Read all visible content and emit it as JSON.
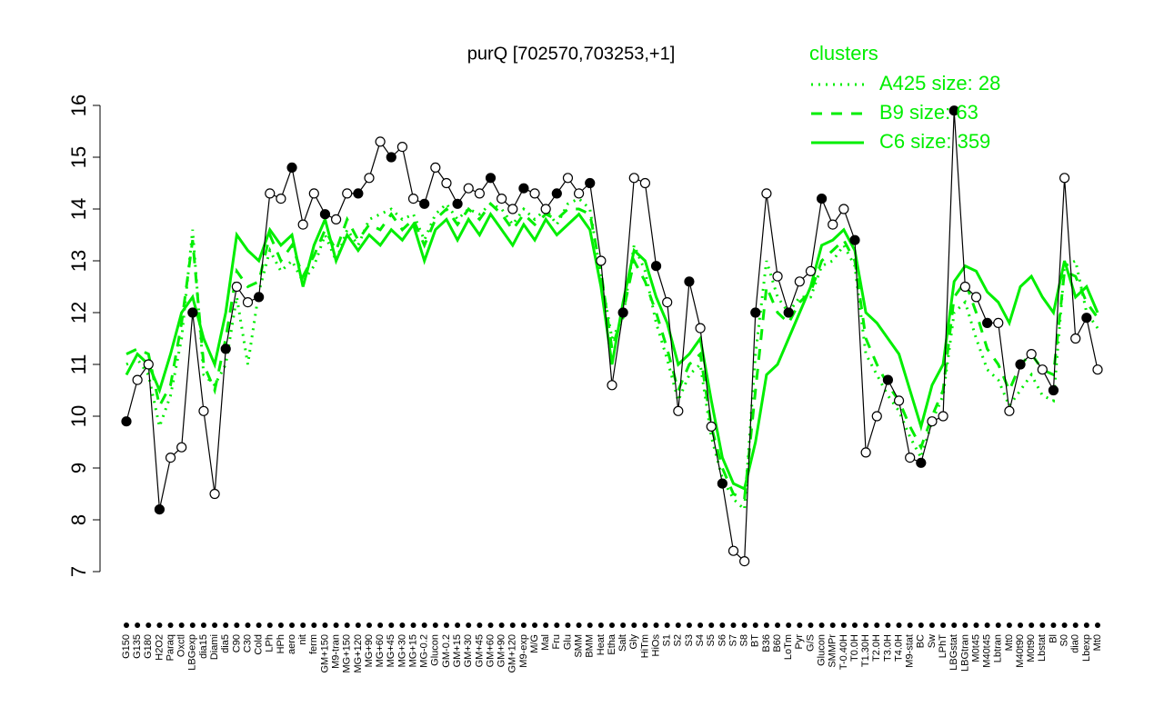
{
  "chart_data": {
    "type": "line",
    "title": "purQ [702570,703253,+1]",
    "legend_title": "clusters",
    "categories": [
      "G150",
      "G135",
      "G180",
      "H2O2",
      "Paraq",
      "Oxctl",
      "LBGexp",
      "dia15",
      "Diami",
      "dia5",
      "C90",
      "C30",
      "Cold",
      "LPh",
      "HPh",
      "aero",
      "nit",
      "ferm",
      "GM+150",
      "M9-tran",
      "MG+150",
      "MG+120",
      "MG+90",
      "MG+60",
      "MG+45",
      "MG+30",
      "MG+15",
      "MG-0.2",
      "Glucon",
      "GM-0.2",
      "GM+15",
      "GM+30",
      "GM+45",
      "GM+60",
      "GM+90",
      "GM+120",
      "M9-exp",
      "M/G",
      "Mal",
      "Fru",
      "Glu",
      "SMM",
      "BMM",
      "Heat",
      "Etha",
      "Salt",
      "Gly",
      "HiTm",
      "HiOs",
      "S1",
      "S2",
      "S3",
      "S4",
      "S5",
      "S6",
      "S7",
      "S8",
      "BT",
      "B36",
      "B60",
      "LoTm",
      "Pyr",
      "G/S",
      "Glucon",
      "SMMPr",
      "T-0.40H",
      "T0.0H",
      "T1.30H",
      "T2.0H",
      "T3.0H",
      "T4.0H",
      "M9-stat",
      "BC",
      "Sw",
      "LPhT",
      "LBGstat",
      "LBGtran",
      "M0t45",
      "M40t45",
      "Lbtran",
      "Mt0",
      "M40t90",
      "M0t90",
      "Lbstat",
      "Bl",
      "S0",
      "dia0",
      "Lbexp",
      "Mt0"
    ],
    "series": [
      {
        "name": "A425 size: 28",
        "color": "#00ee00",
        "linestyle": "dotted",
        "values": [
          11.0,
          11.1,
          10.8,
          9.8,
          10.4,
          11.5,
          13.6,
          10.8,
          10.6,
          11.0,
          12.3,
          11.0,
          12.4,
          13.2,
          12.8,
          13.0,
          12.6,
          12.9,
          13.5,
          13.0,
          13.6,
          13.3,
          13.8,
          13.9,
          14.0,
          13.8,
          13.9,
          13.4,
          13.9,
          14.1,
          13.8,
          14.0,
          13.9,
          14.1,
          14.0,
          13.7,
          14.0,
          13.8,
          14.0,
          13.7,
          14.1,
          14.2,
          14.0,
          12.7,
          11.5,
          11.9,
          13.3,
          12.8,
          11.8,
          11.1,
          10.3,
          10.8,
          11.0,
          9.6,
          8.8,
          8.4,
          8.2,
          11.2,
          13.0,
          12.3,
          12.0,
          12.3,
          12.3,
          12.9,
          13.0,
          13.3,
          12.9,
          11.2,
          10.8,
          10.4,
          10.1,
          9.6,
          9.2,
          9.9,
          10.4,
          12.0,
          12.2,
          11.5,
          10.9,
          10.7,
          10.2,
          10.5,
          10.8,
          10.4,
          10.3,
          12.9,
          13.0,
          12.0,
          11.7
        ]
      },
      {
        "name": "B9 size: 63",
        "color": "#00ee00",
        "linestyle": "dashed",
        "values": [
          11.2,
          11.3,
          11.2,
          10.2,
          10.6,
          11.8,
          13.4,
          11.0,
          10.5,
          11.5,
          12.8,
          12.5,
          12.6,
          13.5,
          13.0,
          13.3,
          12.7,
          13.1,
          13.6,
          13.2,
          13.8,
          13.4,
          13.7,
          13.6,
          13.9,
          13.6,
          13.8,
          13.3,
          13.8,
          14.0,
          13.7,
          14.0,
          13.8,
          14.1,
          13.9,
          13.6,
          13.9,
          13.7,
          13.9,
          13.8,
          14.0,
          14.0,
          13.9,
          12.8,
          11.3,
          12.0,
          13.0,
          12.6,
          12.0,
          11.3,
          10.5,
          11.0,
          11.2,
          9.8,
          9.0,
          8.5,
          8.4,
          10.5,
          12.5,
          12.0,
          11.8,
          12.2,
          12.4,
          13.0,
          13.2,
          13.4,
          13.0,
          11.5,
          11.0,
          10.6,
          10.3,
          9.8,
          9.4,
          10.0,
          10.5,
          12.3,
          12.6,
          12.0,
          11.3,
          11.0,
          10.5,
          11.0,
          11.2,
          10.9,
          10.8,
          12.8,
          12.7,
          12.2,
          11.9
        ]
      },
      {
        "name": "C6 size: 359",
        "color": "#00ee00",
        "linestyle": "solid",
        "values": [
          10.8,
          11.2,
          11.0,
          10.5,
          11.2,
          12.0,
          12.3,
          11.5,
          11.0,
          12.0,
          13.5,
          13.2,
          13.0,
          13.6,
          13.3,
          13.5,
          12.5,
          13.3,
          13.8,
          13.0,
          13.5,
          13.2,
          13.5,
          13.3,
          13.6,
          13.4,
          13.7,
          13.0,
          13.6,
          13.8,
          13.4,
          13.8,
          13.5,
          13.9,
          13.6,
          13.3,
          13.7,
          13.4,
          13.8,
          13.5,
          13.7,
          13.9,
          13.6,
          12.5,
          11.0,
          12.2,
          13.2,
          13.0,
          12.3,
          11.8,
          11.0,
          11.2,
          11.5,
          10.3,
          9.2,
          8.7,
          8.6,
          9.5,
          10.8,
          11.0,
          11.5,
          12.0,
          12.5,
          13.3,
          13.4,
          13.6,
          13.2,
          12.0,
          11.8,
          11.5,
          11.2,
          10.5,
          9.8,
          10.6,
          11.0,
          12.6,
          12.9,
          12.8,
          12.4,
          12.2,
          11.8,
          12.5,
          12.7,
          12.3,
          12.0,
          13.0,
          12.3,
          12.5,
          12.0
        ]
      },
      {
        "name": "purQ",
        "color": "#000000",
        "linestyle": "solid",
        "markers": true,
        "values": [
          9.9,
          10.7,
          11.0,
          8.2,
          9.2,
          9.4,
          12.0,
          10.1,
          8.5,
          11.3,
          12.5,
          12.2,
          12.3,
          14.3,
          14.2,
          14.8,
          13.7,
          14.3,
          13.9,
          13.8,
          14.3,
          14.3,
          14.6,
          15.3,
          15.0,
          15.2,
          14.2,
          14.1,
          14.8,
          14.5,
          14.1,
          14.4,
          14.3,
          14.6,
          14.2,
          14.0,
          14.4,
          14.3,
          14.0,
          14.3,
          14.6,
          14.3,
          14.5,
          13.0,
          10.6,
          12.0,
          14.6,
          14.5,
          12.9,
          12.2,
          10.1,
          12.6,
          11.7,
          9.8,
          8.7,
          7.4,
          7.2,
          12.0,
          14.3,
          12.7,
          12.0,
          12.6,
          12.8,
          14.2,
          13.7,
          14.0,
          13.4,
          9.3,
          10.0,
          10.7,
          10.3,
          9.2,
          9.1,
          9.9,
          10.0,
          15.9,
          12.5,
          12.3,
          11.8,
          11.8,
          10.1,
          11.0,
          11.2,
          10.9,
          10.5,
          14.6,
          11.5,
          11.9,
          10.9
        ]
      }
    ],
    "ylim": [
      7,
      16
    ],
    "yticks": [
      7,
      8,
      9,
      10,
      11,
      12,
      13,
      14,
      15,
      16
    ]
  }
}
